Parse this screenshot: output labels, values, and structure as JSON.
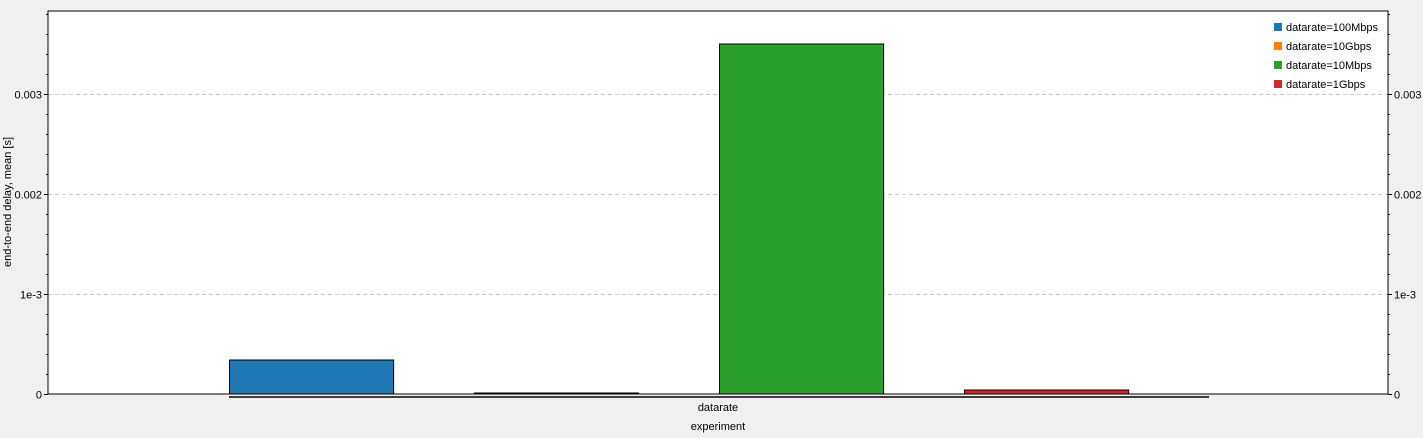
{
  "chart_data": {
    "type": "bar",
    "title": "",
    "xlabel": "experiment",
    "ylabel": "end-to-end delay, mean [s]",
    "group_label": "datarate",
    "ylim": [
      0,
      0.00383
    ],
    "yticks": [
      {
        "value": 0,
        "label": "0"
      },
      {
        "value": 0.001,
        "label": "1e-3"
      },
      {
        "value": 0.002,
        "label": "0.002"
      },
      {
        "value": 0.003,
        "label": "0.003"
      }
    ],
    "grid": true,
    "legend_position": "top-right",
    "series": [
      {
        "name": "datarate=100Mbps",
        "value": 0.00034,
        "color": "#1f77b4"
      },
      {
        "name": "datarate=10Gbps",
        "value": 8e-06,
        "color": "#ff7f0e"
      },
      {
        "name": "datarate=10Mbps",
        "value": 0.0035,
        "color": "#2ca02c"
      },
      {
        "name": "datarate=1Gbps",
        "value": 4e-05,
        "color": "#d62728"
      }
    ]
  }
}
